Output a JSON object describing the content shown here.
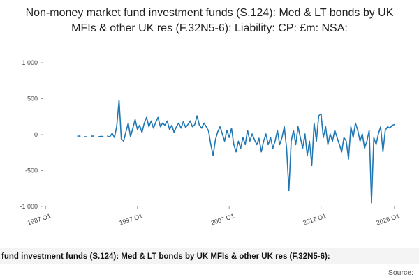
{
  "page": {
    "title": "Non-money market fund investment funds (S.124): Med & LT bonds by UK MFIs & other UK res (F.32N5-6): Liability: CP: £m: NSA:"
  },
  "footer": {
    "caption": "fund investment funds (S.124): Med & LT bonds by UK MFIs & other UK res (F.32N5-6):",
    "source_label": "Source:"
  },
  "chart_data": {
    "type": "line",
    "title": "Non-money market fund investment funds (S.124): Med & LT bonds by UK MFIs & other UK res (F.32N5-6): Liability: CP: £m: NSA:",
    "xlabel": "",
    "ylabel": "",
    "grid": false,
    "legend": "none",
    "line_color": "#1f77b4",
    "tick_color": "#444444",
    "xlim": [
      1986.75,
      2026.0
    ],
    "ylim": [
      -1000,
      1000
    ],
    "x_unit": "year_quarter",
    "x_start": 1990.0,
    "x_step": 0.25,
    "xticks": [
      {
        "pos": 1987.0,
        "label": "1987 Q1"
      },
      {
        "pos": 1997.0,
        "label": "1997 Q1"
      },
      {
        "pos": 2007.0,
        "label": "2007 Q1"
      },
      {
        "pos": 2017.0,
        "label": "2017 Q1"
      },
      {
        "pos": 2025.0,
        "label": "2025 Q1"
      }
    ],
    "yticks": [
      {
        "v": 1000,
        "label": "1 000"
      },
      {
        "v": 500,
        "label": "500"
      },
      {
        "v": 0,
        "label": "0"
      },
      {
        "v": -500,
        "label": "-500"
      },
      {
        "v": -1000,
        "label": "-1 000"
      }
    ],
    "values": [
      -50,
      null,
      -20,
      -20,
      null,
      -30,
      -30,
      null,
      -20,
      -20,
      null,
      -30,
      -25,
      -25,
      null,
      -20,
      -30,
      20,
      -40,
      120,
      480,
      -60,
      -90,
      40,
      160,
      -30,
      90,
      210,
      70,
      130,
      30,
      160,
      240,
      110,
      190,
      90,
      170,
      240,
      110,
      160,
      130,
      190,
      70,
      130,
      30,
      110,
      160,
      90,
      180,
      100,
      140,
      190,
      110,
      140,
      260,
      130,
      90,
      160,
      110,
      50,
      -140,
      -290,
      -70,
      40,
      110,
      10,
      -90,
      60,
      -40,
      90,
      -140,
      -240,
      -90,
      -190,
      -40,
      -140,
      60,
      -90,
      10,
      -70,
      -140,
      -50,
      -240,
      -90,
      10,
      -140,
      -40,
      -190,
      -90,
      60,
      -140,
      -40,
      110,
      -190,
      -780,
      -90,
      60,
      -140,
      110,
      -40,
      -190,
      10,
      -290,
      -90,
      -430,
      160,
      -90,
      260,
      290,
      -40,
      110,
      -140,
      10,
      -90,
      60,
      -40,
      -140,
      -240,
      -40,
      -90,
      -340,
      110,
      -40,
      160,
      60,
      -90,
      10,
      -190,
      -90,
      60,
      -950,
      -40,
      -140,
      10,
      110,
      -240,
      60,
      110,
      90,
      130,
      140
    ]
  }
}
